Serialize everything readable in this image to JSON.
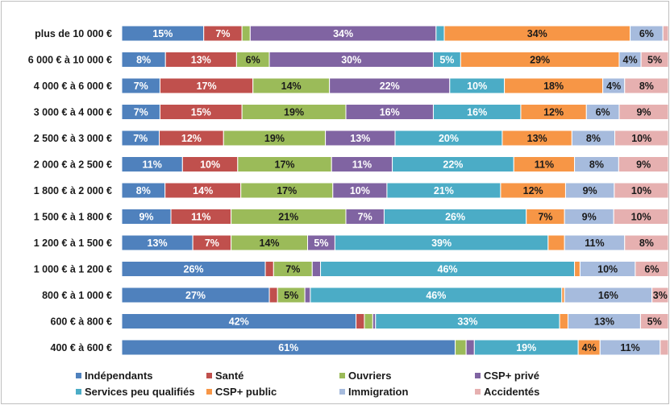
{
  "chart_data": {
    "type": "bar",
    "orientation": "horizontal",
    "stacked": true,
    "normalized": true,
    "title": "",
    "xlabel": "",
    "ylabel": "",
    "xlim": [
      0,
      100
    ],
    "grid": false,
    "legend_position": "bottom",
    "categories": [
      "plus de 10 000 €",
      "6 000 € à 10 000 €",
      "4 000 € à 6 000 €",
      "3 000 € à 4 000 €",
      "2 500 € à 3 000 €",
      "2 000 € à 2 500 €",
      "1 800 € à 2 000 €",
      "1 500 € à 1 800 €",
      "1 200 € à 1 500 €",
      "1 000 € à 1 200 €",
      "800 € à 1 000 €",
      "600 € à 800 €",
      "400 € à 600 €"
    ],
    "series": [
      {
        "name": "Indépendants",
        "color": "#4f81bd",
        "values": [
          15,
          8,
          7,
          7,
          7,
          11,
          8,
          9,
          13,
          26,
          27,
          42,
          61
        ]
      },
      {
        "name": "Santé",
        "color": "#c0504d",
        "values": [
          7,
          13,
          17,
          15,
          12,
          10,
          14,
          11,
          7,
          1.5,
          1.5,
          1.5,
          0
        ]
      },
      {
        "name": "Ouvriers",
        "color": "#9bbb59",
        "values": [
          1.5,
          6,
          14,
          19,
          19,
          17,
          17,
          21,
          14,
          7,
          5,
          1.5,
          2
        ]
      },
      {
        "name": "CSP+ privé",
        "color": "#8064a2",
        "values": [
          34,
          30,
          22,
          16,
          13,
          11,
          10,
          7,
          5,
          1.5,
          1,
          0.5,
          1.5
        ]
      },
      {
        "name": "Services peu qualifiés",
        "color": "#4bacc6",
        "values": [
          1.5,
          5,
          10,
          16,
          20,
          22,
          21,
          26,
          39,
          46,
          46,
          33,
          19
        ]
      },
      {
        "name": "CSP+ public",
        "color": "#f79646",
        "values": [
          34,
          29,
          18,
          12,
          13,
          11,
          12,
          7,
          3,
          1,
          0.5,
          1.5,
          4
        ]
      },
      {
        "name": "Immigration",
        "color": "#a6bbdd",
        "values": [
          6,
          4,
          4,
          6,
          8,
          8,
          9,
          9,
          11,
          10,
          16,
          13,
          11
        ]
      },
      {
        "name": "Accidentés",
        "color": "#e6b0b0",
        "values": [
          1,
          5,
          8,
          9,
          10,
          9,
          10,
          10,
          8,
          6,
          3,
          5,
          1.5
        ]
      }
    ],
    "data_labels": [
      [
        "15%",
        "7%",
        "",
        "34%",
        "",
        "34%",
        "6%",
        ""
      ],
      [
        "8%",
        "13%",
        "6%",
        "30%",
        "5%",
        "29%",
        "4%",
        "5%"
      ],
      [
        "7%",
        "17%",
        "14%",
        "22%",
        "10%",
        "18%",
        "4%",
        "8%"
      ],
      [
        "7%",
        "15%",
        "19%",
        "16%",
        "16%",
        "12%",
        "6%",
        "9%"
      ],
      [
        "7%",
        "12%",
        "19%",
        "13%",
        "20%",
        "13%",
        "8%",
        "10%"
      ],
      [
        "11%",
        "10%",
        "17%",
        "11%",
        "22%",
        "11%",
        "8%",
        "9%"
      ],
      [
        "8%",
        "14%",
        "17%",
        "10%",
        "21%",
        "12%",
        "9%",
        "10%"
      ],
      [
        "9%",
        "11%",
        "21%",
        "7%",
        "26%",
        "7%",
        "9%",
        "10%"
      ],
      [
        "13%",
        "7%",
        "14%",
        "5%",
        "39%",
        "",
        "11%",
        "8%"
      ],
      [
        "26%",
        "",
        "7%",
        "",
        "46%",
        "",
        "10%",
        "6%"
      ],
      [
        "27%",
        "",
        "5%",
        "",
        "46%",
        "",
        "16%",
        "3%"
      ],
      [
        "42%",
        "",
        "",
        "",
        "33%",
        "",
        "13%",
        "5%"
      ],
      [
        "61%",
        "",
        "",
        "",
        "19%",
        "4%",
        "11%",
        ""
      ]
    ]
  }
}
